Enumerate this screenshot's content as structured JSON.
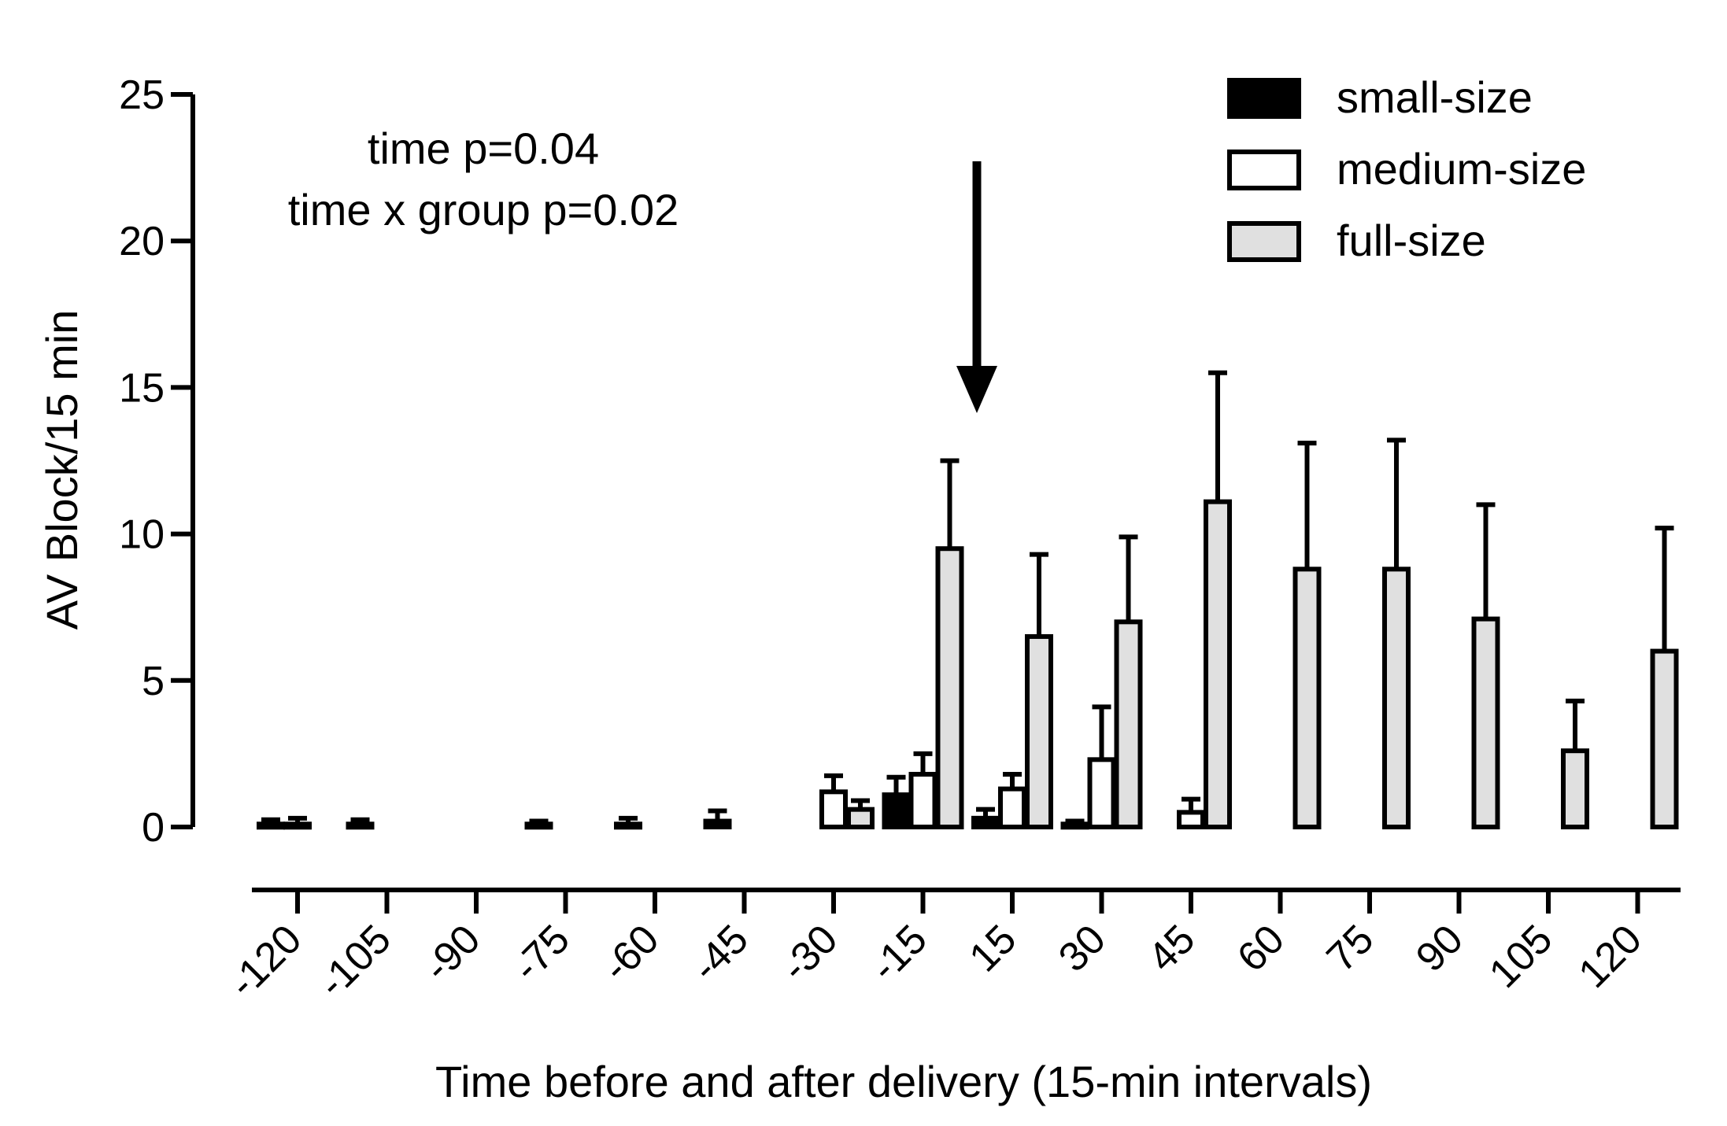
{
  "chart_data": {
    "type": "bar",
    "title": "",
    "xlabel": "Time before and after delivery (15-min intervals)",
    "ylabel": "AV Block/15 min",
    "ylim": [
      0,
      25
    ],
    "yticks": [
      "0",
      "5",
      "10",
      "15",
      "20",
      "25"
    ],
    "categories": [
      "-120",
      "-105",
      "-90",
      "-75",
      "-60",
      "-45",
      "-30",
      "-15",
      "15",
      "30",
      "45",
      "60",
      "75",
      "90",
      "105",
      "120"
    ],
    "series": [
      {
        "name": "small-size",
        "color": "#000000",
        "values": [
          0.1,
          0.1,
          0,
          0.1,
          0.1,
          0.2,
          0,
          1.1,
          0.3,
          0.1,
          0,
          0,
          0,
          0,
          0,
          0
        ],
        "errors": [
          0.15,
          0.15,
          0,
          0.1,
          0.2,
          0.35,
          0,
          0.6,
          0.3,
          0.1,
          0,
          0,
          0,
          0,
          0,
          0
        ]
      },
      {
        "name": "medium-size",
        "color": "#ffffff",
        "values": [
          0.1,
          0,
          0,
          0,
          0,
          0,
          1.2,
          1.8,
          1.3,
          2.3,
          0.5,
          0,
          0,
          0,
          0,
          0
        ],
        "errors": [
          0.2,
          0,
          0,
          0,
          0,
          0,
          0.55,
          0.7,
          0.5,
          1.8,
          0.45,
          0,
          0,
          0,
          0,
          0
        ]
      },
      {
        "name": "full-size",
        "color": "#e0e0e0",
        "values": [
          0,
          0,
          0,
          0,
          0,
          0,
          0.6,
          9.5,
          6.5,
          7.0,
          11.1,
          8.8,
          8.8,
          7.1,
          2.6,
          6.0
        ],
        "errors": [
          0,
          0,
          0,
          0,
          0,
          0,
          0.3,
          3.0,
          2.8,
          2.9,
          4.4,
          4.3,
          4.4,
          3.9,
          1.7,
          4.2
        ]
      }
    ],
    "legend": {
      "position": "top-right",
      "items": [
        "small-size",
        "medium-size",
        "full-size"
      ]
    },
    "annotations": {
      "stat_line_1": "time p=0.04",
      "stat_line_2": "time x group p=0.02",
      "delivery_arrow_between": [
        "-15",
        "15"
      ]
    }
  }
}
